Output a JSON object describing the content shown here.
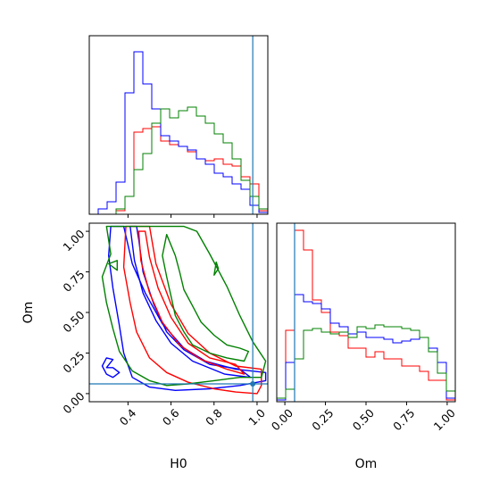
{
  "chart_data": {
    "type": "corner",
    "parameters": [
      "H0",
      "Om"
    ],
    "truth": {
      "H0": 0.98,
      "Om": 0.06,
      "color": "#1f77b4"
    },
    "series": [
      {
        "color": "#ff0000"
      },
      {
        "color": "#0000ff"
      },
      {
        "color": "#008000"
      }
    ],
    "panels": [
      {
        "id": "hist-H0",
        "type": "histogram",
        "param": "H0",
        "xlim": [
          0.22,
          1.05
        ],
        "ymax": 1.0,
        "edges": [
          0.22,
          0.2615,
          0.303,
          0.3445,
          0.386,
          0.4275,
          0.469,
          0.5105,
          0.552,
          0.5935,
          0.635,
          0.6765,
          0.718,
          0.7595,
          0.801,
          0.8425,
          0.884,
          0.9255,
          0.967,
          1.0085,
          1.05
        ],
        "histograms": [
          {
            "series": 0,
            "counts": [
              0,
              0,
              0,
              0.02,
              0.1,
              0.46,
              0.48,
              0.49,
              0.41,
              0.39,
              0.38,
              0.35,
              0.31,
              0.3,
              0.31,
              0.28,
              0.27,
              0.21,
              0.17,
              0.02
            ]
          },
          {
            "series": 1,
            "counts": [
              0,
              0.03,
              0.07,
              0.18,
              0.68,
              0.91,
              0.73,
              0.59,
              0.44,
              0.41,
              0.38,
              0.36,
              0.31,
              0.28,
              0.23,
              0.21,
              0.17,
              0.14,
              0.05,
              0.01
            ]
          },
          {
            "series": 2,
            "counts": [
              0,
              0,
              0,
              0.03,
              0.1,
              0.25,
              0.34,
              0.51,
              0.59,
              0.54,
              0.58,
              0.6,
              0.55,
              0.51,
              0.45,
              0.4,
              0.31,
              0.19,
              0.1,
              0.03
            ]
          }
        ]
      },
      {
        "id": "contour-H0-Om",
        "type": "contour",
        "xparam": "H0",
        "yparam": "Om",
        "xlim": [
          0.22,
          1.05
        ],
        "ylim": [
          -0.05,
          1.05
        ],
        "xticks": [
          "0.4",
          "0.6",
          "0.8",
          "1.0"
        ],
        "xtick_values": [
          0.4,
          0.6,
          0.8,
          1.0
        ],
        "yticks": [
          "0.00",
          "0.25",
          "0.50",
          "0.75",
          "1.00"
        ],
        "ytick_values": [
          0.0,
          0.25,
          0.5,
          0.75,
          1.0
        ],
        "xlabel": "H0",
        "ylabel": "Om",
        "contours": [
          {
            "series": 1,
            "level": "outer",
            "points": [
              [
                0.32,
                1.03
              ],
              [
                0.31,
                0.85
              ],
              [
                0.33,
                0.65
              ],
              [
                0.36,
                0.42
              ],
              [
                0.38,
                0.25
              ],
              [
                0.42,
                0.1
              ],
              [
                0.5,
                0.04
              ],
              [
                0.62,
                0.02
              ],
              [
                0.78,
                0.03
              ],
              [
                0.92,
                0.05
              ],
              [
                1.04,
                0.08
              ],
              [
                1.04,
                0.13
              ],
              [
                0.9,
                0.15
              ],
              [
                0.76,
                0.2
              ],
              [
                0.66,
                0.28
              ],
              [
                0.56,
                0.43
              ],
              [
                0.48,
                0.62
              ],
              [
                0.42,
                0.8
              ],
              [
                0.38,
                1.03
              ],
              [
                0.32,
                1.03
              ]
            ]
          },
          {
            "series": 1,
            "level": "inner",
            "points": [
              [
                0.41,
                1.03
              ],
              [
                0.43,
                0.82
              ],
              [
                0.47,
                0.62
              ],
              [
                0.53,
                0.45
              ],
              [
                0.6,
                0.31
              ],
              [
                0.7,
                0.2
              ],
              [
                0.85,
                0.12
              ],
              [
                0.97,
                0.1
              ],
              [
                0.92,
                0.15
              ],
              [
                0.78,
                0.18
              ],
              [
                0.66,
                0.27
              ],
              [
                0.58,
                0.38
              ],
              [
                0.52,
                0.55
              ],
              [
                0.47,
                0.75
              ],
              [
                0.45,
                0.95
              ],
              [
                0.44,
                1.03
              ],
              [
                0.41,
                1.03
              ]
            ]
          },
          {
            "series": 1,
            "level": "blob",
            "points": [
              [
                0.28,
                0.17
              ],
              [
                0.3,
                0.12
              ],
              [
                0.33,
                0.1
              ],
              [
                0.36,
                0.13
              ],
              [
                0.33,
                0.16
              ],
              [
                0.3,
                0.16
              ],
              [
                0.33,
                0.21
              ],
              [
                0.3,
                0.22
              ],
              [
                0.28,
                0.17
              ]
            ]
          },
          {
            "series": 0,
            "level": "outer",
            "points": [
              [
                0.39,
                1.03
              ],
              [
                0.38,
                0.78
              ],
              [
                0.41,
                0.56
              ],
              [
                0.44,
                0.38
              ],
              [
                0.5,
                0.22
              ],
              [
                0.58,
                0.13
              ],
              [
                0.68,
                0.07
              ],
              [
                0.8,
                0.03
              ],
              [
                0.9,
                0.01
              ],
              [
                1.0,
                0.0
              ],
              [
                1.02,
                0.05
              ],
              [
                1.02,
                0.15
              ],
              [
                0.9,
                0.17
              ],
              [
                0.78,
                0.25
              ],
              [
                0.68,
                0.37
              ],
              [
                0.6,
                0.55
              ],
              [
                0.53,
                0.8
              ],
              [
                0.5,
                1.03
              ],
              [
                0.39,
                1.03
              ]
            ]
          },
          {
            "series": 0,
            "level": "inner",
            "points": [
              [
                0.45,
                1.0
              ],
              [
                0.46,
                0.82
              ],
              [
                0.5,
                0.62
              ],
              [
                0.56,
                0.44
              ],
              [
                0.64,
                0.3
              ],
              [
                0.74,
                0.21
              ],
              [
                0.86,
                0.15
              ],
              [
                0.94,
                0.12
              ],
              [
                0.9,
                0.18
              ],
              [
                0.78,
                0.22
              ],
              [
                0.68,
                0.31
              ],
              [
                0.6,
                0.47
              ],
              [
                0.54,
                0.65
              ],
              [
                0.5,
                0.84
              ],
              [
                0.48,
                1.0
              ],
              [
                0.45,
                1.0
              ]
            ]
          },
          {
            "series": 2,
            "level": "outer",
            "points": [
              [
                0.3,
                1.03
              ],
              [
                0.32,
                0.86
              ],
              [
                0.28,
                0.72
              ],
              [
                0.3,
                0.56
              ],
              [
                0.33,
                0.4
              ],
              [
                0.36,
                0.26
              ],
              [
                0.42,
                0.14
              ],
              [
                0.5,
                0.08
              ],
              [
                0.58,
                0.05
              ],
              [
                0.68,
                0.06
              ],
              [
                0.8,
                0.08
              ],
              [
                0.92,
                0.1
              ],
              [
                1.02,
                0.1
              ],
              [
                1.04,
                0.2
              ],
              [
                0.98,
                0.32
              ],
              [
                0.92,
                0.48
              ],
              [
                0.86,
                0.66
              ],
              [
                0.78,
                0.86
              ],
              [
                0.72,
                1.0
              ],
              [
                0.66,
                1.03
              ],
              [
                0.3,
                1.03
              ]
            ]
          },
          {
            "series": 2,
            "level": "inner",
            "points": [
              [
                0.58,
                0.98
              ],
              [
                0.62,
                0.85
              ],
              [
                0.64,
                0.75
              ],
              [
                0.66,
                0.64
              ],
              [
                0.7,
                0.54
              ],
              [
                0.74,
                0.44
              ],
              [
                0.8,
                0.36
              ],
              [
                0.86,
                0.3
              ],
              [
                0.92,
                0.28
              ],
              [
                0.96,
                0.26
              ],
              [
                0.94,
                0.2
              ],
              [
                0.86,
                0.22
              ],
              [
                0.78,
                0.25
              ],
              [
                0.7,
                0.3
              ],
              [
                0.66,
                0.38
              ],
              [
                0.62,
                0.48
              ],
              [
                0.6,
                0.6
              ],
              [
                0.58,
                0.72
              ],
              [
                0.56,
                0.85
              ],
              [
                0.58,
                0.98
              ]
            ]
          },
          {
            "series": 2,
            "level": "blob",
            "points": [
              [
                0.31,
                0.8
              ],
              [
                0.35,
                0.76
              ],
              [
                0.35,
                0.82
              ],
              [
                0.31,
                0.8
              ]
            ]
          },
          {
            "series": 2,
            "level": "blob",
            "points": [
              [
                0.8,
                0.73
              ],
              [
                0.82,
                0.77
              ],
              [
                0.81,
                0.81
              ],
              [
                0.8,
                0.73
              ]
            ]
          }
        ]
      },
      {
        "id": "hist-Om",
        "type": "histogram",
        "param": "Om",
        "xlim": [
          -0.05,
          1.05
        ],
        "ymax": 1.0,
        "xticks": [
          "0.00",
          "0.25",
          "0.50",
          "0.75",
          "1.00"
        ],
        "xtick_values": [
          0.0,
          0.25,
          0.5,
          0.75,
          1.0
        ],
        "xlabel": "Om",
        "edges": [
          -0.05,
          0.005,
          0.06,
          0.115,
          0.17,
          0.225,
          0.28,
          0.335,
          0.39,
          0.445,
          0.5,
          0.555,
          0.61,
          0.665,
          0.72,
          0.775,
          0.83,
          0.885,
          0.94,
          0.995,
          1.05
        ],
        "histograms": [
          {
            "series": 0,
            "counts": [
              0.01,
              0.4,
              0.96,
              0.85,
              0.57,
              0.5,
              0.39,
              0.37,
              0.3,
              0.3,
              0.25,
              0.28,
              0.24,
              0.24,
              0.2,
              0.2,
              0.17,
              0.12,
              0.12,
              0.01
            ]
          },
          {
            "series": 1,
            "counts": [
              0.01,
              0.22,
              0.6,
              0.56,
              0.55,
              0.52,
              0.44,
              0.42,
              0.38,
              0.39,
              0.36,
              0.36,
              0.35,
              0.33,
              0.34,
              0.35,
              0.36,
              0.3,
              0.22,
              0.02
            ]
          },
          {
            "series": 2,
            "counts": [
              0.02,
              0.07,
              0.24,
              0.4,
              0.41,
              0.39,
              0.38,
              0.39,
              0.36,
              0.42,
              0.41,
              0.43,
              0.42,
              0.42,
              0.41,
              0.4,
              0.36,
              0.28,
              0.16,
              0.06
            ]
          }
        ]
      }
    ]
  }
}
